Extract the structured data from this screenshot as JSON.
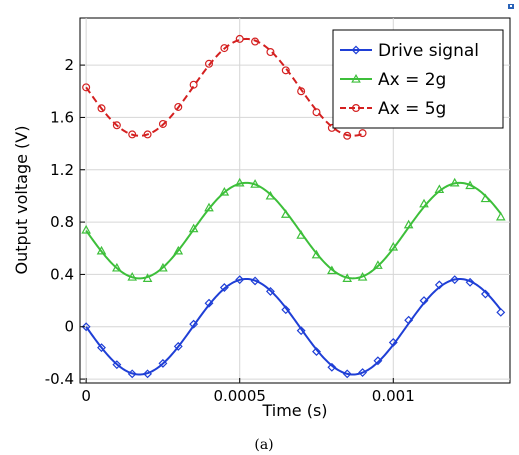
{
  "chart_data": {
    "type": "line",
    "xlabel": "Time (s)",
    "ylabel": "Output voltage (V)",
    "xlim": [
      -2e-05,
      0.00138
    ],
    "ylim": [
      -0.43,
      2.36
    ],
    "grid": true,
    "legend_position": "top-right",
    "x_ticks": [
      0,
      0.0005,
      0.001
    ],
    "x_tick_labels": [
      "0",
      "0.0005",
      "0.001"
    ],
    "y_ticks": [
      -0.4,
      0,
      0.4,
      0.8,
      1.2,
      1.6,
      2.0
    ],
    "y_tick_labels": [
      "-0.4",
      "0",
      "0.4",
      "0.8",
      "1.2",
      "1.6",
      "2"
    ],
    "caption": "(a)",
    "series": [
      {
        "name": "Drive signal",
        "color": "#1f3fd6",
        "marker": "diamond",
        "line_style": "solid",
        "offset": 0.0,
        "amplitude": 0.365,
        "period": 0.000695,
        "phase_sign": -1,
        "x": [
          0,
          5e-05,
          0.0001,
          0.00015,
          0.0002,
          0.00025,
          0.0003,
          0.00035,
          0.0004,
          0.00045,
          0.0005,
          0.00055,
          0.0006,
          0.00065,
          0.0007,
          0.00075,
          0.0008,
          0.00085,
          0.0009,
          0.00095,
          0.001,
          0.00105,
          0.0011,
          0.00115,
          0.0012,
          0.00125,
          0.0013,
          0.00135
        ],
        "values": [
          0.0,
          -0.16,
          -0.29,
          -0.36,
          -0.36,
          -0.28,
          -0.15,
          0.02,
          0.18,
          0.3,
          0.36,
          0.35,
          0.27,
          0.13,
          -0.03,
          -0.19,
          -0.31,
          -0.36,
          -0.35,
          -0.26,
          -0.12,
          0.05,
          0.2,
          0.32,
          0.36,
          0.34,
          0.25,
          0.11
        ]
      },
      {
        "name": "Ax = 2g",
        "color": "#3dbf3a",
        "marker": "triangle",
        "line_style": "solid",
        "offset": 0.735,
        "amplitude": 0.365,
        "period": 0.000695,
        "phase_sign": -1,
        "x": [
          0,
          5e-05,
          0.0001,
          0.00015,
          0.0002,
          0.00025,
          0.0003,
          0.00035,
          0.0004,
          0.00045,
          0.0005,
          0.00055,
          0.0006,
          0.00065,
          0.0007,
          0.00075,
          0.0008,
          0.00085,
          0.0009,
          0.00095,
          0.001,
          0.00105,
          0.0011,
          0.00115,
          0.0012,
          0.00125,
          0.0013,
          0.00135
        ],
        "values": [
          0.74,
          0.58,
          0.45,
          0.38,
          0.37,
          0.45,
          0.58,
          0.75,
          0.91,
          1.03,
          1.1,
          1.09,
          1.0,
          0.86,
          0.7,
          0.55,
          0.43,
          0.37,
          0.38,
          0.47,
          0.61,
          0.78,
          0.94,
          1.05,
          1.1,
          1.08,
          0.98,
          0.84
        ]
      },
      {
        "name": "Ax = 5g",
        "color": "#d42020",
        "marker": "circle",
        "line_style": "dashed",
        "offset": 1.83,
        "amplitude": 0.37,
        "period": 0.000695,
        "phase_sign": -1,
        "x": [
          0,
          5e-05,
          0.0001,
          0.00015,
          0.0002,
          0.00025,
          0.0003,
          0.00035,
          0.0004,
          0.00045,
          0.0005,
          0.00055,
          0.0006,
          0.00065,
          0.0007,
          0.00075,
          0.0008,
          0.00085,
          0.0009
        ],
        "values": [
          1.83,
          1.67,
          1.54,
          1.47,
          1.47,
          1.55,
          1.68,
          1.85,
          2.01,
          2.13,
          2.2,
          2.18,
          2.1,
          1.96,
          1.8,
          1.64,
          1.52,
          1.46,
          1.48
        ]
      }
    ]
  }
}
